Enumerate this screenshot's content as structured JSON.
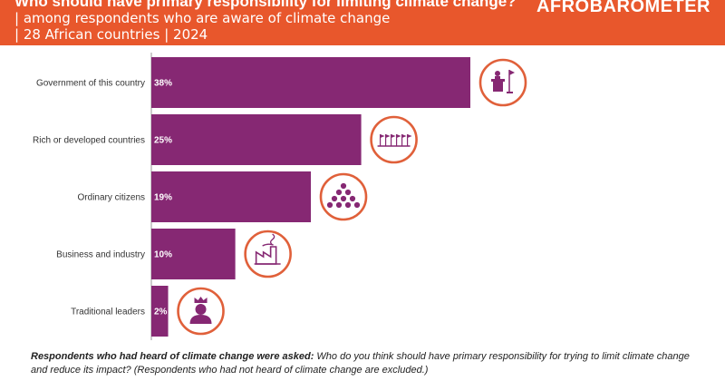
{
  "header": {
    "title": "Who should have primary responsibility for limiting climate change?",
    "subtitle_line1": "| among respondents who are aware of climate change",
    "subtitle_line2": "| 28 African countries | 2024",
    "brand": "AFROBAROMETER"
  },
  "chart_data": {
    "type": "bar",
    "orientation": "horizontal",
    "categories": [
      "Government of this country",
      "Rich or developed countries",
      "Ordinary citizens",
      "Business and industry",
      "Traditional leaders"
    ],
    "values": [
      38,
      25,
      19,
      10,
      2
    ],
    "value_labels": [
      "38%",
      "25%",
      "19%",
      "10%",
      "2%"
    ],
    "xlim": [
      0,
      38
    ],
    "grid": false,
    "legend": "none",
    "icons": [
      "podium-flag-icon",
      "flags-row-icon",
      "crowd-icon",
      "factory-icon",
      "crowned-person-icon"
    ],
    "bar_color": "#862873",
    "icon_ring_color": "#e0603a"
  },
  "footnote": {
    "bold": "Respondents who had heard of climate change were asked:",
    "text": " Who do you think should have primary responsibility for trying to limit climate change and reduce its impact? (Respondents who had not heard of climate change are excluded.)"
  }
}
